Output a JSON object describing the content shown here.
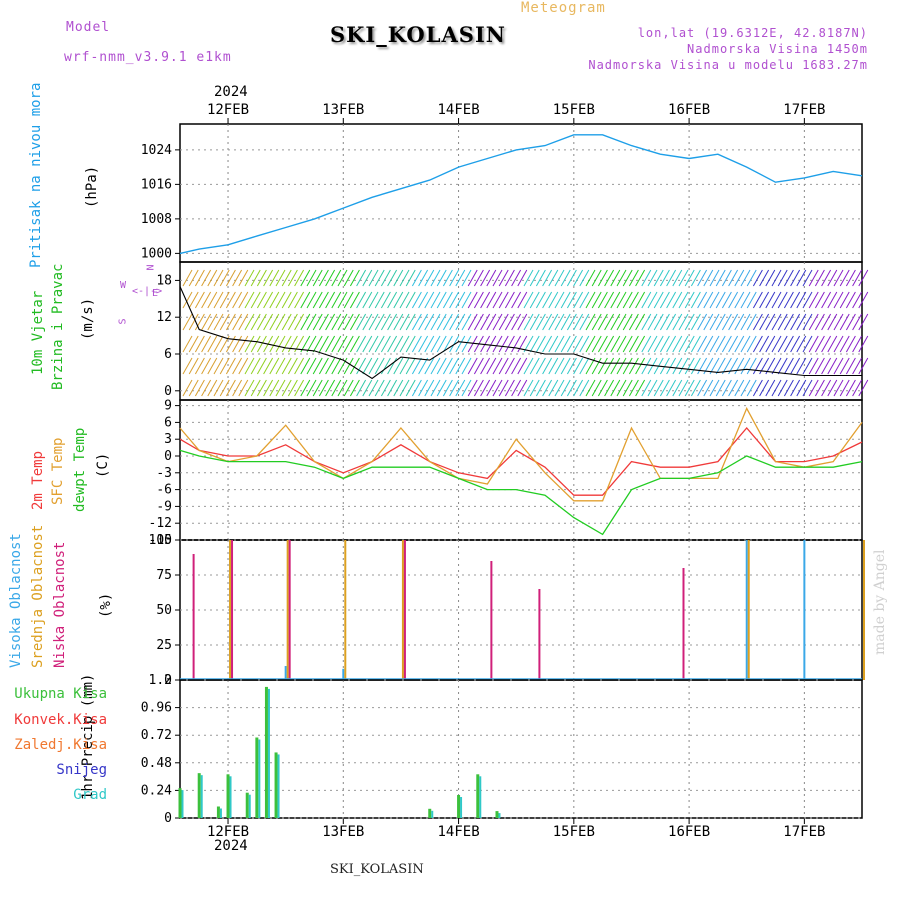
{
  "header": {
    "model_label": "Model",
    "model_name": "wrf-nmm_v3.9.1 e1km",
    "title": "SKI_KOLASIN",
    "meteogram": "Meteogram",
    "lonlat": "lon,lat (19.6312E, 42.8187N)",
    "altitude": "Nadmorska Visina 1450m",
    "model_altitude": "Nadmorska Visina u modelu 1683.27m"
  },
  "colors": {
    "pressure": "#1e9fe8",
    "temp2m": "#f03a3a",
    "sfc": "#e2a030",
    "dewpt": "#22cc22",
    "high_cloud": "#3aa8e8",
    "mid_cloud": "#dca020",
    "low_cloud": "#d0207a",
    "precip_total": "#3cc03c",
    "snow": "#3636c8",
    "grad": "#30c8c8",
    "wind_speed": "#000000"
  },
  "dates": {
    "year": "2024",
    "labels": [
      "12FEB",
      "13FEB",
      "14FEB",
      "15FEB",
      "16FEB",
      "17FEB"
    ]
  },
  "panels": {
    "pressure": {
      "label": "Pritisak na nivou mora",
      "unit": "(hPa)"
    },
    "wind": {
      "label1": "10m Vjetar",
      "label2": "Brzina i Pravac",
      "unit": "(m/s)",
      "compass": "N",
      "compass_w": "W",
      "compass_e": "E",
      "compass_s": "S"
    },
    "temp": {
      "label1": "2m Temp",
      "label2": "SFC Temp",
      "label3": "dewpt Temp",
      "unit": "(C)"
    },
    "cloud": {
      "label1": "Visoka Oblacnost",
      "label2": "Srednja Oblacnost",
      "label3": "Niska Oblacnost",
      "unit": "(%)"
    },
    "precip": {
      "unit": "1hr Precip (mm)",
      "legend": [
        "Ukupna Kisa",
        "Konvek.Kisa",
        "Zaledj.Kisa",
        "Snijeg",
        "Grad"
      ]
    }
  },
  "footer": {
    "station": "SKI_KOLASIN",
    "watermark": "made by Angel"
  },
  "chart_data": [
    {
      "type": "line",
      "title": "Pritisak na nivou mora",
      "ylabel": "(hPa)",
      "ylim": [
        998,
        1030
      ],
      "yticks": [
        1000,
        1008,
        1016,
        1024
      ],
      "xlim": [
        "2024-02-11T14:00",
        "2024-02-17T12:00"
      ],
      "series": [
        {
          "name": "Pritisak na nivou mora",
          "x": [
            "2024-02-11T14:00",
            "2024-02-11T18:00",
            "2024-02-12T00:00",
            "2024-02-12T06:00",
            "2024-02-12T12:00",
            "2024-02-12T18:00",
            "2024-02-13T00:00",
            "2024-02-13T06:00",
            "2024-02-13T12:00",
            "2024-02-13T18:00",
            "2024-02-14T00:00",
            "2024-02-14T06:00",
            "2024-02-14T12:00",
            "2024-02-14T18:00",
            "2024-02-15T00:00",
            "2024-02-15T06:00",
            "2024-02-15T12:00",
            "2024-02-15T18:00",
            "2024-02-16T00:00",
            "2024-02-16T06:00",
            "2024-02-16T12:00",
            "2024-02-16T18:00",
            "2024-02-17T00:00",
            "2024-02-17T06:00",
            "2024-02-17T12:00"
          ],
          "y": [
            1000,
            1001,
            1002,
            1004,
            1006,
            1008,
            1010.5,
            1013,
            1015,
            1017,
            1020,
            1022,
            1024,
            1025,
            1027.5,
            1027.5,
            1025,
            1023,
            1022,
            1023,
            1020,
            1016.5,
            1017.5,
            1019,
            1018
          ]
        }
      ]
    },
    {
      "type": "line",
      "title": "10m Vjetar Brzina i Pravac",
      "ylabel": "(m/s)",
      "ylim": [
        -1.5,
        21
      ],
      "yticks": [
        0,
        6,
        12,
        18
      ],
      "series": [
        {
          "name": "Brzina",
          "x": [
            "2024-02-11T14:00",
            "2024-02-11T18:00",
            "2024-02-12T00:00",
            "2024-02-12T06:00",
            "2024-02-12T12:00",
            "2024-02-12T18:00",
            "2024-02-13T00:00",
            "2024-02-13T06:00",
            "2024-02-13T12:00",
            "2024-02-13T18:00",
            "2024-02-14T00:00",
            "2024-02-14T06:00",
            "2024-02-14T12:00",
            "2024-02-14T18:00",
            "2024-02-15T00:00",
            "2024-02-15T06:00",
            "2024-02-15T12:00",
            "2024-02-15T18:00",
            "2024-02-16T00:00",
            "2024-02-16T06:00",
            "2024-02-16T12:00",
            "2024-02-16T18:00",
            "2024-02-17T00:00",
            "2024-02-17T06:00",
            "2024-02-17T12:00"
          ],
          "y": [
            17,
            10,
            8.5,
            8,
            7,
            6.5,
            5,
            2,
            5.5,
            5,
            8,
            7.5,
            7,
            6,
            6,
            4.5,
            4.5,
            4,
            3.5,
            3,
            3.5,
            3,
            2.5,
            2.5,
            2.5
          ]
        }
      ]
    },
    {
      "type": "line",
      "title": "Temp",
      "ylabel": "(C)",
      "ylim": [
        -15,
        10
      ],
      "yticks": [
        -15,
        -12,
        -9,
        -6,
        -3,
        0,
        3,
        6,
        9
      ],
      "x": [
        "2024-02-11T14:00",
        "2024-02-11T18:00",
        "2024-02-12T00:00",
        "2024-02-12T06:00",
        "2024-02-12T12:00",
        "2024-02-12T18:00",
        "2024-02-13T00:00",
        "2024-02-13T06:00",
        "2024-02-13T12:00",
        "2024-02-13T18:00",
        "2024-02-14T00:00",
        "2024-02-14T06:00",
        "2024-02-14T12:00",
        "2024-02-14T18:00",
        "2024-02-15T00:00",
        "2024-02-15T06:00",
        "2024-02-15T12:00",
        "2024-02-15T18:00",
        "2024-02-16T00:00",
        "2024-02-16T06:00",
        "2024-02-16T12:00",
        "2024-02-16T18:00",
        "2024-02-17T00:00",
        "2024-02-17T06:00",
        "2024-02-17T12:00"
      ],
      "series": [
        {
          "name": "2m Temp",
          "y": [
            3,
            1,
            0,
            0,
            2,
            -1,
            -3,
            -1,
            2,
            -1,
            -3,
            -4,
            1,
            -2,
            -7,
            -7,
            -1,
            -2,
            -2,
            -1,
            5,
            -1,
            -1,
            0,
            2.5
          ]
        },
        {
          "name": "SFC Temp",
          "y": [
            5,
            1,
            -1,
            0,
            5.5,
            -1,
            -4,
            -1,
            5,
            -1,
            -4,
            -5,
            3,
            -3,
            -8,
            -8,
            5,
            -4,
            -4,
            -4,
            8.5,
            -1,
            -2,
            -1,
            6
          ]
        },
        {
          "name": "dewpt Temp",
          "y": [
            1,
            0,
            -1,
            -1,
            -1,
            -2,
            -4,
            -2,
            -2,
            -2,
            -4,
            -6,
            -6,
            -7,
            -11,
            -14,
            -6,
            -4,
            -4,
            -3,
            0,
            -2,
            -2,
            -2,
            -1
          ]
        }
      ]
    },
    {
      "type": "bar",
      "title": "Oblacnost",
      "ylabel": "(%)",
      "ylim": [
        0,
        100
      ],
      "yticks": [
        0,
        25,
        50,
        75,
        100
      ],
      "series": [
        {
          "name": "Visoka Oblacnost",
          "x": [
            "2024-02-12T12:00",
            "2024-02-13T00:00",
            "2024-02-16T12:00",
            "2024-02-17T00:00"
          ],
          "y": [
            10,
            8,
            100,
            100
          ]
        },
        {
          "name": "Srednja Oblacnost",
          "x": [
            "2024-02-12T00:00",
            "2024-02-12T12:00",
            "2024-02-13T00:00",
            "2024-02-13T12:00",
            "2024-02-16T12:00",
            "2024-02-17T12:00"
          ],
          "y": [
            100,
            100,
            100,
            100,
            100,
            100
          ]
        },
        {
          "name": "Niska Oblacnost",
          "x": [
            "2024-02-11T16:00",
            "2024-02-12T00:00",
            "2024-02-12T12:00",
            "2024-02-13T12:00",
            "2024-02-14T06:00",
            "2024-02-14T16:00",
            "2024-02-15T22:00"
          ],
          "y": [
            90,
            100,
            100,
            100,
            85,
            65,
            80
          ]
        }
      ]
    },
    {
      "type": "bar",
      "title": "1hr Precip",
      "ylabel": "1hr Precip (mm)",
      "ylim": [
        0,
        1.2
      ],
      "yticks": [
        0,
        0.24,
        0.48,
        0.72,
        0.96,
        1.2
      ],
      "series": [
        {
          "name": "Ukupna Kisa",
          "x": [
            "2024-02-11T14:00",
            "2024-02-11T18:00",
            "2024-02-11T22:00",
            "2024-02-12T00:00",
            "2024-02-12T04:00",
            "2024-02-12T06:00",
            "2024-02-12T08:00",
            "2024-02-12T10:00",
            "2024-02-13T18:00",
            "2024-02-14T00:00",
            "2024-02-14T04:00",
            "2024-02-14T08:00"
          ],
          "y": [
            0.26,
            0.39,
            0.1,
            0.38,
            0.22,
            0.7,
            1.14,
            0.57,
            0.08,
            0.2,
            0.38,
            0.06
          ]
        }
      ]
    }
  ]
}
